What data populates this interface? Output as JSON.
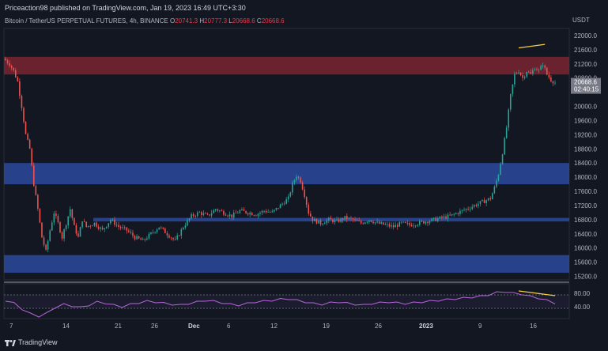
{
  "header": {
    "publish_line": "Priceaction98 published on TradingView.com, Jan 19, 2023 16:49 UTC+3:30",
    "symbol": "Bitcoin / TetherUS PERPETUAL FUTURES, 4h, BINANCE",
    "o_label": "O",
    "o_value": "20741.3",
    "h_label": "H",
    "h_value": "20777.3",
    "l_label": "L",
    "l_value": "20668.6",
    "c_label": "C",
    "c_value": "20668.6",
    "currency": "USDT"
  },
  "price_axis": {
    "ticks": [
      "22000.0",
      "21600.0",
      "21200.0",
      "20800.0",
      "20000.0",
      "19600.0",
      "19200.0",
      "18800.0",
      "18400.0",
      "18000.0",
      "17600.0",
      "17200.0",
      "16800.0",
      "16400.0",
      "16000.0",
      "15600.0",
      "15200.0"
    ],
    "current_price": "20668.6",
    "countdown": "02:40:15"
  },
  "rsi_axis": {
    "ticks": [
      "80.00",
      "40.00"
    ]
  },
  "time_axis": {
    "labels": [
      "7",
      "14",
      "21",
      "26",
      "Dec",
      "6",
      "12",
      "19",
      "26",
      "2023",
      "9",
      "16"
    ]
  },
  "footer": {
    "brand": "TradingView"
  },
  "colors": {
    "background": "#131722",
    "resistance_zone": "#7a2530",
    "support_zone": "#2b4a9e",
    "up_candle": "#26a69a",
    "down_candle": "#ef5350",
    "rsi_line": "#b667d9",
    "divergence": "#f5d142",
    "price_label": "#787b86"
  },
  "chart_data": {
    "type": "candlestick",
    "title": "Bitcoin / TetherUS PERPETUAL FUTURES, 4h, BINANCE",
    "timeframe": "4h",
    "ylim": [
      15100,
      22200
    ],
    "close_path": [
      [
        0,
        21300
      ],
      [
        2,
        21200
      ],
      [
        4,
        21000
      ],
      [
        6,
        20700
      ],
      [
        8,
        20000
      ],
      [
        10,
        19200
      ],
      [
        12,
        18800
      ],
      [
        14,
        17800
      ],
      [
        16,
        17100
      ],
      [
        18,
        16300
      ],
      [
        20,
        15900
      ],
      [
        22,
        16500
      ],
      [
        24,
        17000
      ],
      [
        26,
        16700
      ],
      [
        28,
        16300
      ],
      [
        30,
        16700
      ],
      [
        32,
        17100
      ],
      [
        34,
        16600
      ],
      [
        36,
        16300
      ],
      [
        38,
        16800
      ],
      [
        40,
        16600
      ],
      [
        44,
        16700
      ],
      [
        48,
        16500
      ],
      [
        52,
        16800
      ],
      [
        56,
        16600
      ],
      [
        60,
        16500
      ],
      [
        64,
        16300
      ],
      [
        68,
        16200
      ],
      [
        72,
        16400
      ],
      [
        76,
        16600
      ],
      [
        80,
        16400
      ],
      [
        84,
        16200
      ],
      [
        88,
        16600
      ],
      [
        92,
        16900
      ],
      [
        96,
        17000
      ],
      [
        100,
        16900
      ],
      [
        104,
        17100
      ],
      [
        108,
        17000
      ],
      [
        112,
        16900
      ],
      [
        116,
        17050
      ],
      [
        120,
        17000
      ],
      [
        124,
        16950
      ],
      [
        128,
        17050
      ],
      [
        132,
        17000
      ],
      [
        136,
        17200
      ],
      [
        140,
        17400
      ],
      [
        142,
        17800
      ],
      [
        144,
        18050
      ],
      [
        146,
        17900
      ],
      [
        148,
        17500
      ],
      [
        150,
        17000
      ],
      [
        152,
        16800
      ],
      [
        156,
        16700
      ],
      [
        160,
        16800
      ],
      [
        164,
        16750
      ],
      [
        168,
        16850
      ],
      [
        172,
        16800
      ],
      [
        176,
        16700
      ],
      [
        180,
        16800
      ],
      [
        184,
        16700
      ],
      [
        188,
        16650
      ],
      [
        192,
        16600
      ],
      [
        196,
        16700
      ],
      [
        200,
        16650
      ],
      [
        204,
        16700
      ],
      [
        208,
        16750
      ],
      [
        212,
        16800
      ],
      [
        216,
        16850
      ],
      [
        220,
        16900
      ],
      [
        224,
        17000
      ],
      [
        228,
        17100
      ],
      [
        232,
        17200
      ],
      [
        236,
        17300
      ],
      [
        240,
        17400
      ],
      [
        242,
        17700
      ],
      [
        244,
        18100
      ],
      [
        246,
        18700
      ],
      [
        248,
        19400
      ],
      [
        250,
        20300
      ],
      [
        252,
        20900
      ],
      [
        254,
        21000
      ],
      [
        256,
        20800
      ],
      [
        258,
        21000
      ],
      [
        260,
        20900
      ],
      [
        262,
        21100
      ],
      [
        264,
        21000
      ],
      [
        266,
        21200
      ],
      [
        268,
        20900
      ],
      [
        270,
        20750
      ],
      [
        272,
        20668.6
      ]
    ],
    "resistance_zone": [
      20900,
      21400
    ],
    "support_zones": [
      [
        17800,
        18400
      ],
      [
        16750,
        16850
      ],
      [
        15300,
        15800
      ]
    ],
    "rsi": {
      "ticks": [
        80,
        40
      ],
      "ylim": [
        20,
        100
      ],
      "overbought": 70,
      "oversold": 30,
      "values": [
        62,
        55,
        40,
        28,
        22,
        30,
        45,
        52,
        48,
        44,
        50,
        58,
        55,
        50,
        46,
        52,
        56,
        60,
        58,
        55,
        52,
        50,
        54,
        58,
        62,
        60,
        56,
        52,
        50,
        54,
        58,
        60,
        62,
        65,
        66,
        62,
        58,
        54,
        52,
        56,
        58,
        55,
        52,
        50,
        54,
        56,
        58,
        56,
        54,
        56,
        58,
        60,
        62,
        64,
        66,
        68,
        70,
        72,
        76,
        82,
        84,
        80,
        78,
        72,
        68,
        62,
        55
      ]
    },
    "divergence": {
      "price_highs": [
        21650,
        21750
      ],
      "rsi_highs": [
        86,
        74
      ]
    }
  }
}
